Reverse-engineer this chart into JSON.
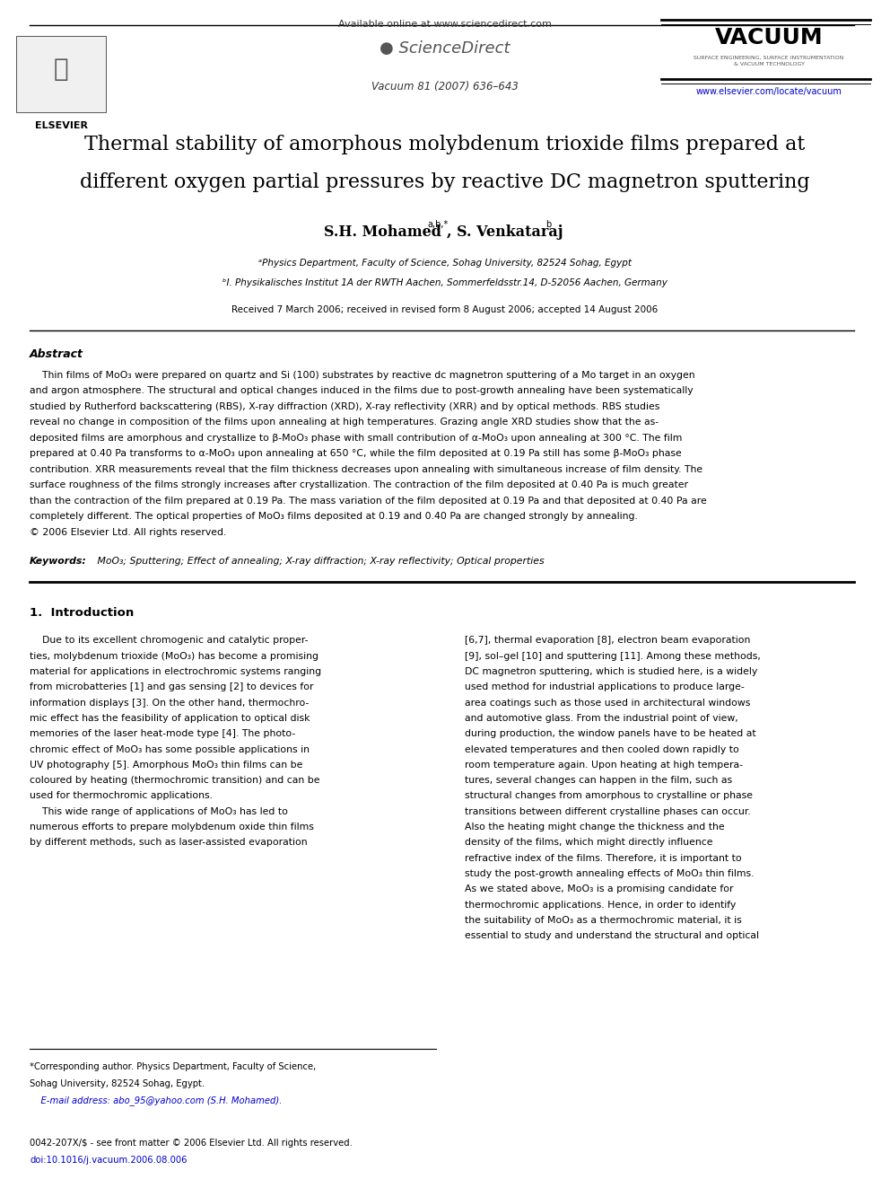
{
  "bg_color": "#ffffff",
  "page_width": 9.92,
  "page_height": 13.23,
  "dpi": 100,
  "header_available": "Available online at www.sciencedirect.com",
  "header_sd": "● ScienceDirect",
  "header_vacuum": "VACUUM",
  "header_vacuum_sub": "SURFACE ENGINEERING, SURFACE INSTRUMENTATION\n& VACUUM TECHNOLOGY",
  "header_journal_info": "Vacuum 81 (2007) 636–643",
  "header_url": "www.elsevier.com/locate/vacuum",
  "elsevier_text": "ELSEVIER",
  "title_line1": "Thermal stability of amorphous molybdenum trioxide films prepared at",
  "title_line2": "different oxygen partial pressures by reactive DC magnetron sputtering",
  "authors": "S.H. Mohamed",
  "authors_sup": "a,b,*",
  "authors2": ", S. Venkataraj",
  "authors2_sup": "b",
  "affil_a": "ᵃPhysics Department, Faculty of Science, Sohag University, 82524 Sohag, Egypt",
  "affil_b": "ᵇI. Physikalisches Institut 1A der RWTH Aachen, Sommerfeldsstr.14, D-52056 Aachen, Germany",
  "received": "Received 7 March 2006; received in revised form 8 August 2006; accepted 14 August 2006",
  "abstract_title": "Abstract",
  "abstract_lines": [
    "    Thin films of MoO₃ were prepared on quartz and Si (100) substrates by reactive dc magnetron sputtering of a Mo target in an oxygen",
    "and argon atmosphere. The structural and optical changes induced in the films due to post-growth annealing have been systematically",
    "studied by Rutherford backscattering (RBS), X-ray diffraction (XRD), X-ray reflectivity (XRR) and by optical methods. RBS studies",
    "reveal no change in composition of the films upon annealing at high temperatures. Grazing angle XRD studies show that the as-",
    "deposited films are amorphous and crystallize to β-MoO₃ phase with small contribution of α-MoO₃ upon annealing at 300 °C. The film",
    "prepared at 0.40 Pa transforms to α-MoO₃ upon annealing at 650 °C, while the film deposited at 0.19 Pa still has some β-MoO₃ phase",
    "contribution. XRR measurements reveal that the film thickness decreases upon annealing with simultaneous increase of film density. The",
    "surface roughness of the films strongly increases after crystallization. The contraction of the film deposited at 0.40 Pa is much greater",
    "than the contraction of the film prepared at 0.19 Pa. The mass variation of the film deposited at 0.19 Pa and that deposited at 0.40 Pa are",
    "completely different. The optical properties of MoO₃ films deposited at 0.19 and 0.40 Pa are changed strongly by annealing.",
    "© 2006 Elsevier Ltd. All rights reserved."
  ],
  "keywords_bold": "Keywords:",
  "keywords_text": " MoO₃; Sputtering; Effect of annealing; X-ray diffraction; X-ray reflectivity; Optical properties",
  "intro_title": "1.  Introduction",
  "intro_col1_lines": [
    "    Due to its excellent chromogenic and catalytic proper-",
    "ties, molybdenum trioxide (MoO₃) has become a promising",
    "material for applications in electrochromic systems ranging",
    "from microbatteries [1] and gas sensing [2] to devices for",
    "information displays [3]. On the other hand, thermochro-",
    "mic effect has the feasibility of application to optical disk",
    "memories of the laser heat-mode type [4]. The photo-",
    "chromic effect of MoO₃ has some possible applications in",
    "UV photography [5]. Amorphous MoO₃ thin films can be",
    "coloured by heating (thermochromic transition) and can be",
    "used for thermochromic applications.",
    "    This wide range of applications of MoO₃ has led to",
    "numerous efforts to prepare molybdenum oxide thin films",
    "by different methods, such as laser-assisted evaporation"
  ],
  "intro_col2_lines": [
    "[6,7], thermal evaporation [8], electron beam evaporation",
    "[9], sol–gel [10] and sputtering [11]. Among these methods,",
    "DC magnetron sputtering, which is studied here, is a widely",
    "used method for industrial applications to produce large-",
    "area coatings such as those used in architectural windows",
    "and automotive glass. From the industrial point of view,",
    "during production, the window panels have to be heated at",
    "elevated temperatures and then cooled down rapidly to",
    "room temperature again. Upon heating at high tempera-",
    "tures, several changes can happen in the film, such as",
    "structural changes from amorphous to crystalline or phase",
    "transitions between different crystalline phases can occur.",
    "Also the heating might change the thickness and the",
    "density of the films, which might directly influence",
    "refractive index of the films. Therefore, it is important to",
    "study the post-growth annealing effects of MoO₃ thin films.",
    "As we stated above, MoO₃ is a promising candidate for",
    "thermochromic applications. Hence, in order to identify",
    "the suitability of MoO₃ as a thermochromic material, it is",
    "essential to study and understand the structural and optical"
  ],
  "footnote_lines": [
    "*Corresponding author. Physics Department, Faculty of Science,",
    "Sohag University, 82524 Sohag, Egypt.",
    "    E-mail address: abo_95@yahoo.com (S.H. Mohamed)."
  ],
  "footer_lines": [
    "0042-207X/$ - see front matter © 2006 Elsevier Ltd. All rights reserved.",
    "doi:10.1016/j.vacuum.2006.08.006"
  ],
  "colors": {
    "black": "#000000",
    "dark_gray": "#444444",
    "blue": "#0000cc"
  }
}
